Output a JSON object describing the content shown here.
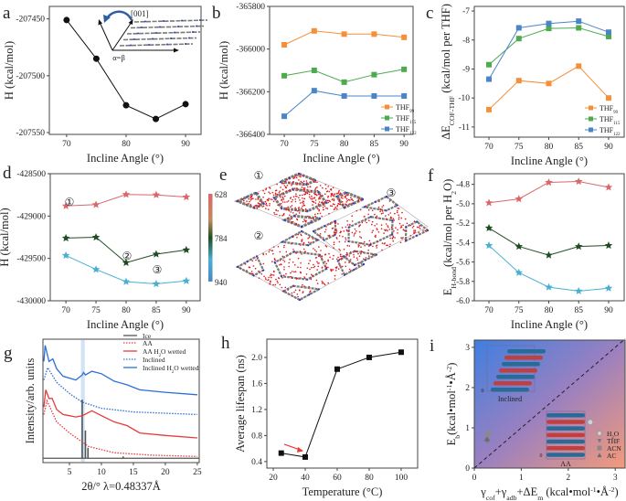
{
  "panel_letters": [
    "a",
    "b",
    "c",
    "d",
    "e",
    "f",
    "g",
    "h",
    "i"
  ],
  "colors": {
    "thf99": "#f5903a",
    "thf115": "#4daa4d",
    "thf122": "#4a86c6",
    "s1": "#d9686a",
    "s2": "#1f4d23",
    "s3": "#4ab0d0",
    "ice": "#555555",
    "aa": "#e83a3a",
    "inclined": "#2a6fd6",
    "band": "#c6dcf2",
    "arrow": "#e83a3a"
  },
  "chart_data": [
    {
      "panel": "a",
      "type": "line",
      "marker": "circle",
      "xlabel": [
        {
          "t": "Incline Angle (°)"
        }
      ],
      "ylabel": [
        {
          "t": "H (kcal/mol)"
        }
      ],
      "xlim": [
        67.1,
        92.6
      ],
      "ylim": [
        -207551.6,
        -207439
      ],
      "xticks": [
        70,
        80,
        90
      ],
      "yticks": [
        -207450,
        -207500,
        -207550
      ],
      "series": [
        {
          "color": "#111111",
          "x": [
            70,
            75,
            80,
            85,
            90
          ],
          "y": [
            -207451,
            -207485,
            -207526,
            -207538,
            -207525
          ]
        }
      ],
      "inset": {
        "direction_label": "[001]",
        "angle_label": "α=β"
      }
    },
    {
      "panel": "b",
      "type": "line",
      "marker": "square",
      "xlabel": [
        {
          "t": "Incline Angle (°)"
        }
      ],
      "ylabel": [
        {
          "t": "H (kcal/mol)"
        }
      ],
      "xlim": [
        67.55,
        91.5
      ],
      "ylim": [
        -366400,
        -365800
      ],
      "xticks": [
        70,
        75,
        80,
        85,
        90
      ],
      "yticks": [
        -365800,
        -366000,
        -366200,
        -366400
      ],
      "legend": "bottom-right",
      "series": [
        {
          "name": [
            {
              "t": "THF"
            },
            {
              "t": "99",
              "sub": true
            }
          ],
          "color": "#f5903a",
          "x": [
            70,
            75,
            80,
            85,
            90
          ],
          "y": [
            -365980,
            -365915,
            -365930,
            -365930,
            -365945
          ]
        },
        {
          "name": [
            {
              "t": "THF"
            },
            {
              "t": "115",
              "sub": true
            }
          ],
          "color": "#4daa4d",
          "x": [
            70,
            75,
            80,
            85,
            90
          ],
          "y": [
            -366125,
            -366100,
            -366155,
            -366120,
            -366095
          ]
        },
        {
          "name": [
            {
              "t": "THF"
            },
            {
              "t": "122",
              "sub": true
            }
          ],
          "color": "#4a86c6",
          "x": [
            70,
            75,
            80,
            85,
            90
          ],
          "y": [
            -366315,
            -366195,
            -366220,
            -366220,
            -366220
          ]
        }
      ]
    },
    {
      "panel": "c",
      "type": "line",
      "marker": "square",
      "xlabel": [
        {
          "t": "Incline Angle (°)"
        }
      ],
      "ylabel": [
        {
          "t": "ΔE"
        },
        {
          "t": "COF-THF",
          "sub": true
        },
        {
          "t": " (kcal/mol per THF)"
        }
      ],
      "xlim": [
        67.55,
        92.6
      ],
      "ylim": [
        -11.35,
        -6.84
      ],
      "xticks": [
        70,
        75,
        80,
        85,
        90
      ],
      "yticks": [
        -7,
        -8,
        -9,
        -10,
        -11
      ],
      "legend": "bottom-right",
      "series": [
        {
          "name": [
            {
              "t": "THF"
            },
            {
              "t": "99",
              "sub": true
            }
          ],
          "color": "#f5903a",
          "x": [
            70,
            75,
            80,
            85,
            90
          ],
          "y": [
            -10.4,
            -9.4,
            -9.5,
            -8.9,
            -10.0
          ]
        },
        {
          "name": [
            {
              "t": "THF"
            },
            {
              "t": "115",
              "sub": true
            }
          ],
          "color": "#4daa4d",
          "x": [
            70,
            75,
            80,
            85,
            90
          ],
          "y": [
            -8.85,
            -7.95,
            -7.6,
            -7.58,
            -7.88
          ]
        },
        {
          "name": [
            {
              "t": "THF"
            },
            {
              "t": "122",
              "sub": true
            }
          ],
          "color": "#4a86c6",
          "x": [
            70,
            75,
            80,
            85,
            90
          ],
          "y": [
            -9.35,
            -7.58,
            -7.43,
            -7.35,
            -7.73
          ]
        }
      ]
    },
    {
      "panel": "d",
      "type": "line",
      "marker": "star",
      "xlabel": [
        {
          "t": "Incline Angle (°)"
        }
      ],
      "ylabel": [
        {
          "t": "H (kcal/mol)"
        }
      ],
      "xlim": [
        67.4,
        92.3
      ],
      "ylim": [
        -430000,
        -428500
      ],
      "xticks": [
        70,
        75,
        80,
        85,
        90
      ],
      "yticks": [
        -428500,
        -429000,
        -429500,
        -430000
      ],
      "annotations": [
        "①",
        "②",
        "③"
      ],
      "series": [
        {
          "color": "#d9686a",
          "x": [
            70,
            75,
            80,
            85,
            90
          ],
          "y": [
            -428880,
            -428865,
            -428745,
            -428750,
            -428775
          ]
        },
        {
          "color": "#1f4d23",
          "x": [
            70,
            75,
            80,
            85,
            90
          ],
          "y": [
            -429260,
            -429250,
            -429550,
            -429450,
            -429400
          ]
        },
        {
          "color": "#4ab0d0",
          "x": [
            70,
            75,
            80,
            85,
            90
          ],
          "y": [
            -429465,
            -429630,
            -429775,
            -429800,
            -429765
          ]
        }
      ],
      "colorbar": {
        "labels": [
          "628",
          "784",
          "940"
        ],
        "colors": [
          "#d9686a",
          "#1f4d23",
          "#4a86c6"
        ]
      }
    },
    {
      "panel": "f",
      "type": "line",
      "marker": "star",
      "xlabel": [
        {
          "t": "Incline Angle (°)"
        }
      ],
      "ylabel": [
        {
          "t": "E"
        },
        {
          "t": "H-bond",
          "sub": true
        },
        {
          "t": "(kcal/mol per H"
        },
        {
          "t": "2",
          "sub": true
        },
        {
          "t": "O)"
        }
      ],
      "xlim": [
        67.55,
        92.6
      ],
      "ylim": [
        -6.0,
        -4.69
      ],
      "xticks": [
        70,
        75,
        80,
        85,
        90
      ],
      "yticks": [
        -4.8,
        -5.0,
        -5.2,
        -5.4,
        -5.6,
        -5.8,
        -6.0
      ],
      "ytick_decimals": 1,
      "series": [
        {
          "color": "#d9686a",
          "x": [
            70,
            75,
            80,
            85,
            90
          ],
          "y": [
            -4.99,
            -4.95,
            -4.78,
            -4.77,
            -4.83
          ]
        },
        {
          "color": "#1f4d23",
          "x": [
            70,
            75,
            80,
            85,
            90
          ],
          "y": [
            -5.25,
            -5.44,
            -5.53,
            -5.44,
            -5.43
          ]
        },
        {
          "color": "#4ab0d0",
          "x": [
            70,
            75,
            80,
            85,
            90
          ],
          "y": [
            -5.43,
            -5.71,
            -5.86,
            -5.9,
            -5.87
          ]
        }
      ]
    },
    {
      "panel": "g",
      "type": "line",
      "marker": "none",
      "xlabel": [
        {
          "t": "2θ/° λ=0.48337Å"
        }
      ],
      "ylabel": [
        {
          "t": "Intensity/arb. units"
        }
      ],
      "xlim": [
        0.86,
        25.3
      ],
      "ylim": [
        0,
        100
      ],
      "xticks": [
        5,
        10,
        15,
        20,
        25
      ],
      "yticks": [],
      "legend": "top-right",
      "highlight_band": [
        6.8,
        7.4
      ],
      "sticks": {
        "name": [
          {
            "t": "Ice"
          }
        ],
        "color": "#555555",
        "x": [
          7.0,
          7.5,
          7.9,
          13.4
        ],
        "y": [
          51,
          26,
          12,
          5
        ],
        "baseline": 3.5
      },
      "series": [
        {
          "name": [
            {
              "t": "AA"
            }
          ],
          "color": "#e83a3a",
          "dash": true,
          "x": [
            1,
            1.5,
            3,
            5,
            8,
            12,
            18,
            25
          ],
          "y": [
            39,
            50,
            33,
            24,
            13,
            8,
            6,
            5
          ]
        },
        {
          "name": [
            {
              "t": "AA H"
            },
            {
              "t": "2",
              "sub": true
            },
            {
              "t": "O wetted"
            }
          ],
          "color": "#e83a3a",
          "x": [
            1,
            1.3,
            1.8,
            2.3,
            3,
            4,
            5,
            6,
            7,
            8.5,
            10,
            12,
            14,
            16,
            20,
            25
          ],
          "y": [
            45,
            59,
            52,
            52,
            43,
            39,
            38,
            37,
            38,
            42,
            38,
            33,
            30,
            24,
            22,
            20
          ]
        },
        {
          "name": [
            {
              "t": "Inclined"
            }
          ],
          "color": "#2a6fd6",
          "dash": true,
          "x": [
            1,
            1.6,
            3,
            5,
            7,
            10,
            15,
            25
          ],
          "y": [
            67,
            77,
            65,
            56,
            49,
            44,
            41,
            39
          ]
        },
        {
          "name": [
            {
              "t": "Inclined H"
            },
            {
              "t": "2",
              "sub": true
            },
            {
              "t": "O wetted"
            }
          ],
          "color": "#2a6fd6",
          "x": [
            1,
            1.2,
            1.8,
            2.4,
            3,
            4,
            6,
            7,
            7.2,
            7.5,
            8.5,
            10,
            12,
            14,
            16,
            20,
            25
          ],
          "y": [
            82,
            95,
            82,
            84,
            76,
            70,
            67,
            71,
            73,
            71,
            74,
            72,
            66,
            63,
            59,
            57,
            55
          ]
        }
      ]
    },
    {
      "panel": "h",
      "type": "line",
      "marker": "square",
      "xlabel": [
        {
          "t": "Temperature (°C)"
        }
      ],
      "ylabel": [
        {
          "t": "Average lifespan (ns)"
        }
      ],
      "xlim": [
        16,
        110.3
      ],
      "ylim": [
        0.3,
        2.28
      ],
      "xticks": [
        20,
        40,
        60,
        80,
        100
      ],
      "yticks": [
        0.4,
        0.8,
        1.2,
        1.6,
        2.0
      ],
      "ytick_decimals": 1,
      "series": [
        {
          "color": "#111111",
          "x": [
            25,
            40,
            60,
            80,
            100
          ],
          "y": [
            0.53,
            0.47,
            1.82,
            2.0,
            2.08
          ]
        }
      ],
      "annotation_arrow_at": [
        40,
        0.47
      ]
    },
    {
      "panel": "i",
      "type": "scatter",
      "xlabel": [
        {
          "t": "γ"
        },
        {
          "t": "cof",
          "sub": true
        },
        {
          "t": "+γ"
        },
        {
          "t": "adb",
          "sub": true
        },
        {
          "t": "+ΔE"
        },
        {
          "t": "m",
          "sub": true
        },
        {
          "t": " (kcal•mol"
        },
        {
          "t": "-1",
          "sup": true
        },
        {
          "t": "•Å"
        },
        {
          "t": "-2",
          "sup": true
        },
        {
          "t": ")"
        }
      ],
      "ylabel": [
        {
          "t": "E"
        },
        {
          "t": "b",
          "sub": true
        },
        {
          "t": "(kcal•mol"
        },
        {
          "t": "-1",
          "sup": true
        },
        {
          "t": "•Å"
        },
        {
          "t": "-2",
          "sup": true
        },
        {
          "t": ")"
        }
      ],
      "xlim": [
        0,
        3.21
      ],
      "ylim": [
        0,
        3.18
      ],
      "xticks": [
        0,
        1,
        2,
        3
      ],
      "yticks": [
        0,
        1,
        2,
        3
      ],
      "diagonal": "y = x dashed",
      "background_gradient": [
        "#3f7fe0",
        "#9a80c0",
        "#f49a7a"
      ],
      "legend": "bottom-right",
      "series": [
        {
          "name": [
            {
              "t": "H"
            },
            {
              "t": "2",
              "sub": true
            },
            {
              "t": "O"
            }
          ],
          "marker": "circle",
          "color": "#d0d0d0",
          "x": [
            2.47
          ],
          "y": [
            1.14
          ]
        },
        {
          "name": [
            {
              "t": "THF"
            }
          ],
          "marker": "triangle-down",
          "color": "#7a7a7a",
          "x": [
            0.28
          ],
          "y": [
            0.68
          ]
        },
        {
          "name": [
            {
              "t": "ACN"
            }
          ],
          "marker": "square",
          "color": "#8a8a8a",
          "x": [
            0.3
          ],
          "y": [
            0.85
          ]
        },
        {
          "name": [
            {
              "t": "AC"
            }
          ],
          "marker": "triangle",
          "color": "#6a6a6a",
          "x": [
            0.27
          ],
          "y": [
            0.72
          ]
        }
      ],
      "insets": {
        "inclined_label": "Inclined",
        "aa_label": "AA",
        "origin_label": "0"
      }
    }
  ],
  "panel_e": {
    "labels": [
      "①",
      "②",
      "③"
    ]
  }
}
